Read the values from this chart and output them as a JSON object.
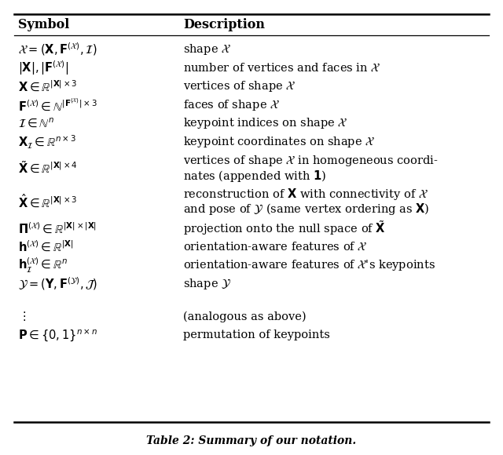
{
  "title": "Table 2: Summary of our notation.",
  "col1_header": "Symbol",
  "col2_header": "Description",
  "background_color": "#ffffff",
  "figwidth": 6.4,
  "figheight": 5.8,
  "dpi": 100,
  "rows": [
    {
      "symbol": "$\\mathcal{X} = (\\mathbf{X}, \\mathbf{F}^{(\\mathcal{X})}, \\mathcal{I})$",
      "desc_parts": [
        "shape $\\mathcal{X}$"
      ],
      "sym_valign": "top"
    },
    {
      "symbol": "$|\\mathbf{X}|, |\\mathbf{F}^{(\\mathcal{X})}|$",
      "desc_parts": [
        "number of vertices and faces in $\\mathcal{X}$"
      ],
      "sym_valign": "top"
    },
    {
      "symbol": "$\\mathbf{X} \\in \\mathbb{R}^{|\\mathbf{X}|\\times 3}$",
      "desc_parts": [
        "vertices of shape $\\mathcal{X}$"
      ],
      "sym_valign": "top"
    },
    {
      "symbol": "$\\mathbf{F}^{(\\mathcal{X})} \\in \\mathbb{N}^{|\\mathbf{F}^{(\\mathcal{X})}|\\times 3}$",
      "desc_parts": [
        "faces of shape $\\mathcal{X}$"
      ],
      "sym_valign": "top"
    },
    {
      "symbol": "$\\mathcal{I} \\in \\mathbb{N}^{n}$",
      "desc_parts": [
        "keypoint indices on shape $\\mathcal{X}$"
      ],
      "sym_valign": "top"
    },
    {
      "symbol": "$\\mathbf{X}_{\\mathcal{I}} \\in \\mathbb{R}^{n\\times 3}$",
      "desc_parts": [
        "keypoint coordinates on shape $\\mathcal{X}$"
      ],
      "sym_valign": "top"
    },
    {
      "symbol": "$\\tilde{\\mathbf{X}} \\in \\mathbb{R}^{|\\mathbf{X}|\\times 4}$",
      "desc_parts": [
        "vertices of shape $\\mathcal{X}$ in homogeneous coordi-",
        "nates (appended with $\\mathbf{1}$)"
      ],
      "sym_valign": "top"
    },
    {
      "symbol": "$\\hat{\\mathbf{X}} \\in \\mathbb{R}^{|\\mathbf{X}|\\times 3}$",
      "desc_parts": [
        "reconstruction of $\\mathbf{X}$ with connectivity of $\\mathcal{X}$",
        "and pose of $\\mathcal{Y}$ (same vertex ordering as $\\mathbf{X}$)"
      ],
      "sym_valign": "top"
    },
    {
      "symbol": "$\\mathbf{\\Pi}^{(\\mathcal{X})} \\in \\mathbb{R}^{|\\mathbf{X}|\\times|\\mathbf{X}|}$",
      "desc_parts": [
        "projection onto the null space of $\\tilde{\\mathbf{X}}$"
      ],
      "sym_valign": "top"
    },
    {
      "symbol": "$\\mathbf{h}^{(\\mathcal{X})} \\in \\mathbb{R}^{|\\mathbf{X}|}$",
      "desc_parts": [
        "orientation-aware features of $\\mathcal{X}$"
      ],
      "sym_valign": "top"
    },
    {
      "symbol": "$\\mathbf{h}^{(\\mathcal{X})}_{\\mathcal{I}} \\in \\mathbb{R}^{n}$",
      "desc_parts": [
        "orientation-aware features of $\\mathcal{X}$'s keypoints"
      ],
      "sym_valign": "top"
    },
    {
      "symbol": "$\\mathcal{Y} = (\\mathbf{Y}, \\mathbf{F}^{(\\mathcal{Y})}, \\mathcal{J})$",
      "desc_parts": [
        "shape $\\mathcal{Y}$"
      ],
      "sym_valign": "top"
    },
    {
      "symbol": "$\\vdots$",
      "desc_parts": [
        "(analogous as above)"
      ],
      "sym_valign": "top",
      "extra_gap_before": true
    },
    {
      "symbol": "$\\mathbf{P} \\in \\{0, 1\\}^{n\\times n}$",
      "desc_parts": [
        "permutation of keypoints"
      ],
      "sym_valign": "top"
    }
  ]
}
